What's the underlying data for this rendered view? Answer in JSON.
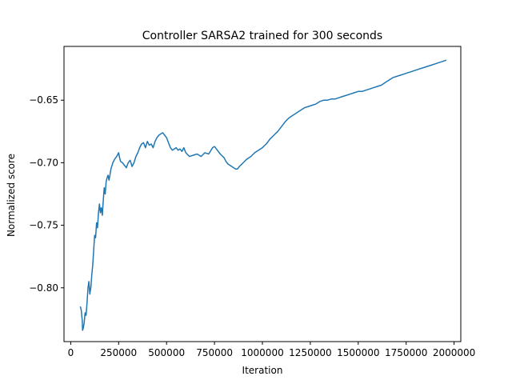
{
  "chart_data": {
    "type": "line",
    "title": "Controller SARSA2 trained for 300 seconds",
    "xlabel": "Iteration",
    "ylabel": "Normalized score",
    "xlim": [
      -35000,
      2035000
    ],
    "ylim": [
      -0.843,
      -0.607
    ],
    "xticks": [
      0,
      250000,
      500000,
      750000,
      1000000,
      1250000,
      1500000,
      1750000,
      2000000
    ],
    "xtick_labels": [
      "0",
      "250000",
      "500000",
      "750000",
      "1000000",
      "1250000",
      "1500000",
      "1750000",
      "2000000"
    ],
    "yticks": [
      -0.8,
      -0.75,
      -0.7,
      -0.65
    ],
    "ytick_labels": [
      "−0.80",
      "−0.75",
      "−0.70",
      "−0.65"
    ],
    "grid": false,
    "series": [
      {
        "color": "#1f77b4",
        "x": [
          50000,
          55000,
          60000,
          62000,
          66000,
          70000,
          75000,
          80000,
          85000,
          90000,
          95000,
          100000,
          105000,
          110000,
          115000,
          120000,
          125000,
          130000,
          135000,
          140000,
          145000,
          150000,
          155000,
          160000,
          165000,
          170000,
          175000,
          180000,
          185000,
          190000,
          195000,
          200000,
          210000,
          220000,
          230000,
          240000,
          250000,
          255000,
          260000,
          270000,
          280000,
          290000,
          300000,
          310000,
          320000,
          330000,
          340000,
          350000,
          360000,
          370000,
          380000,
          390000,
          400000,
          410000,
          420000,
          430000,
          440000,
          450000,
          460000,
          470000,
          480000,
          490000,
          500000,
          510000,
          520000,
          530000,
          540000,
          550000,
          560000,
          570000,
          580000,
          590000,
          600000,
          620000,
          640000,
          660000,
          680000,
          700000,
          720000,
          740000,
          750000,
          760000,
          780000,
          800000,
          810000,
          820000,
          830000,
          840000,
          850000,
          860000,
          870000,
          880000,
          900000,
          920000,
          940000,
          960000,
          980000,
          1000000,
          1020000,
          1040000,
          1060000,
          1080000,
          1100000,
          1120000,
          1140000,
          1160000,
          1180000,
          1200000,
          1220000,
          1240000,
          1260000,
          1280000,
          1300000,
          1320000,
          1340000,
          1360000,
          1380000,
          1400000,
          1420000,
          1440000,
          1460000,
          1480000,
          1500000,
          1520000,
          1540000,
          1560000,
          1580000,
          1600000,
          1620000,
          1640000,
          1660000,
          1680000,
          1700000,
          1720000,
          1740000,
          1760000,
          1780000,
          1800000,
          1820000,
          1840000,
          1860000,
          1880000,
          1900000,
          1920000,
          1940000,
          1960000
        ],
        "y": [
          -0.815,
          -0.818,
          -0.826,
          -0.834,
          -0.832,
          -0.828,
          -0.82,
          -0.822,
          -0.812,
          -0.8,
          -0.795,
          -0.805,
          -0.8,
          -0.79,
          -0.782,
          -0.77,
          -0.758,
          -0.76,
          -0.748,
          -0.752,
          -0.74,
          -0.733,
          -0.74,
          -0.736,
          -0.742,
          -0.73,
          -0.72,
          -0.725,
          -0.715,
          -0.712,
          -0.71,
          -0.714,
          -0.705,
          -0.7,
          -0.697,
          -0.695,
          -0.692,
          -0.696,
          -0.699,
          -0.7,
          -0.702,
          -0.704,
          -0.7,
          -0.698,
          -0.703,
          -0.7,
          -0.695,
          -0.692,
          -0.688,
          -0.685,
          -0.684,
          -0.688,
          -0.683,
          -0.686,
          -0.685,
          -0.688,
          -0.683,
          -0.68,
          -0.678,
          -0.677,
          -0.676,
          -0.678,
          -0.68,
          -0.684,
          -0.688,
          -0.69,
          -0.689,
          -0.688,
          -0.69,
          -0.689,
          -0.691,
          -0.688,
          -0.692,
          -0.695,
          -0.694,
          -0.693,
          -0.695,
          -0.692,
          -0.693,
          -0.688,
          -0.687,
          -0.689,
          -0.693,
          -0.696,
          -0.699,
          -0.701,
          -0.702,
          -0.703,
          -0.704,
          -0.705,
          -0.705,
          -0.703,
          -0.7,
          -0.697,
          -0.695,
          -0.692,
          -0.69,
          -0.688,
          -0.685,
          -0.681,
          -0.678,
          -0.675,
          -0.671,
          -0.667,
          -0.664,
          -0.662,
          -0.66,
          -0.658,
          -0.656,
          -0.655,
          -0.654,
          -0.653,
          -0.651,
          -0.65,
          -0.65,
          -0.649,
          -0.649,
          -0.648,
          -0.647,
          -0.646,
          -0.645,
          -0.644,
          -0.643,
          -0.643,
          -0.642,
          -0.641,
          -0.64,
          -0.639,
          -0.638,
          -0.636,
          -0.634,
          -0.632,
          -0.631,
          -0.63,
          -0.629,
          -0.628,
          -0.627,
          -0.626,
          -0.625,
          -0.624,
          -0.623,
          -0.622,
          -0.621,
          -0.62,
          -0.619,
          -0.618
        ]
      }
    ]
  }
}
